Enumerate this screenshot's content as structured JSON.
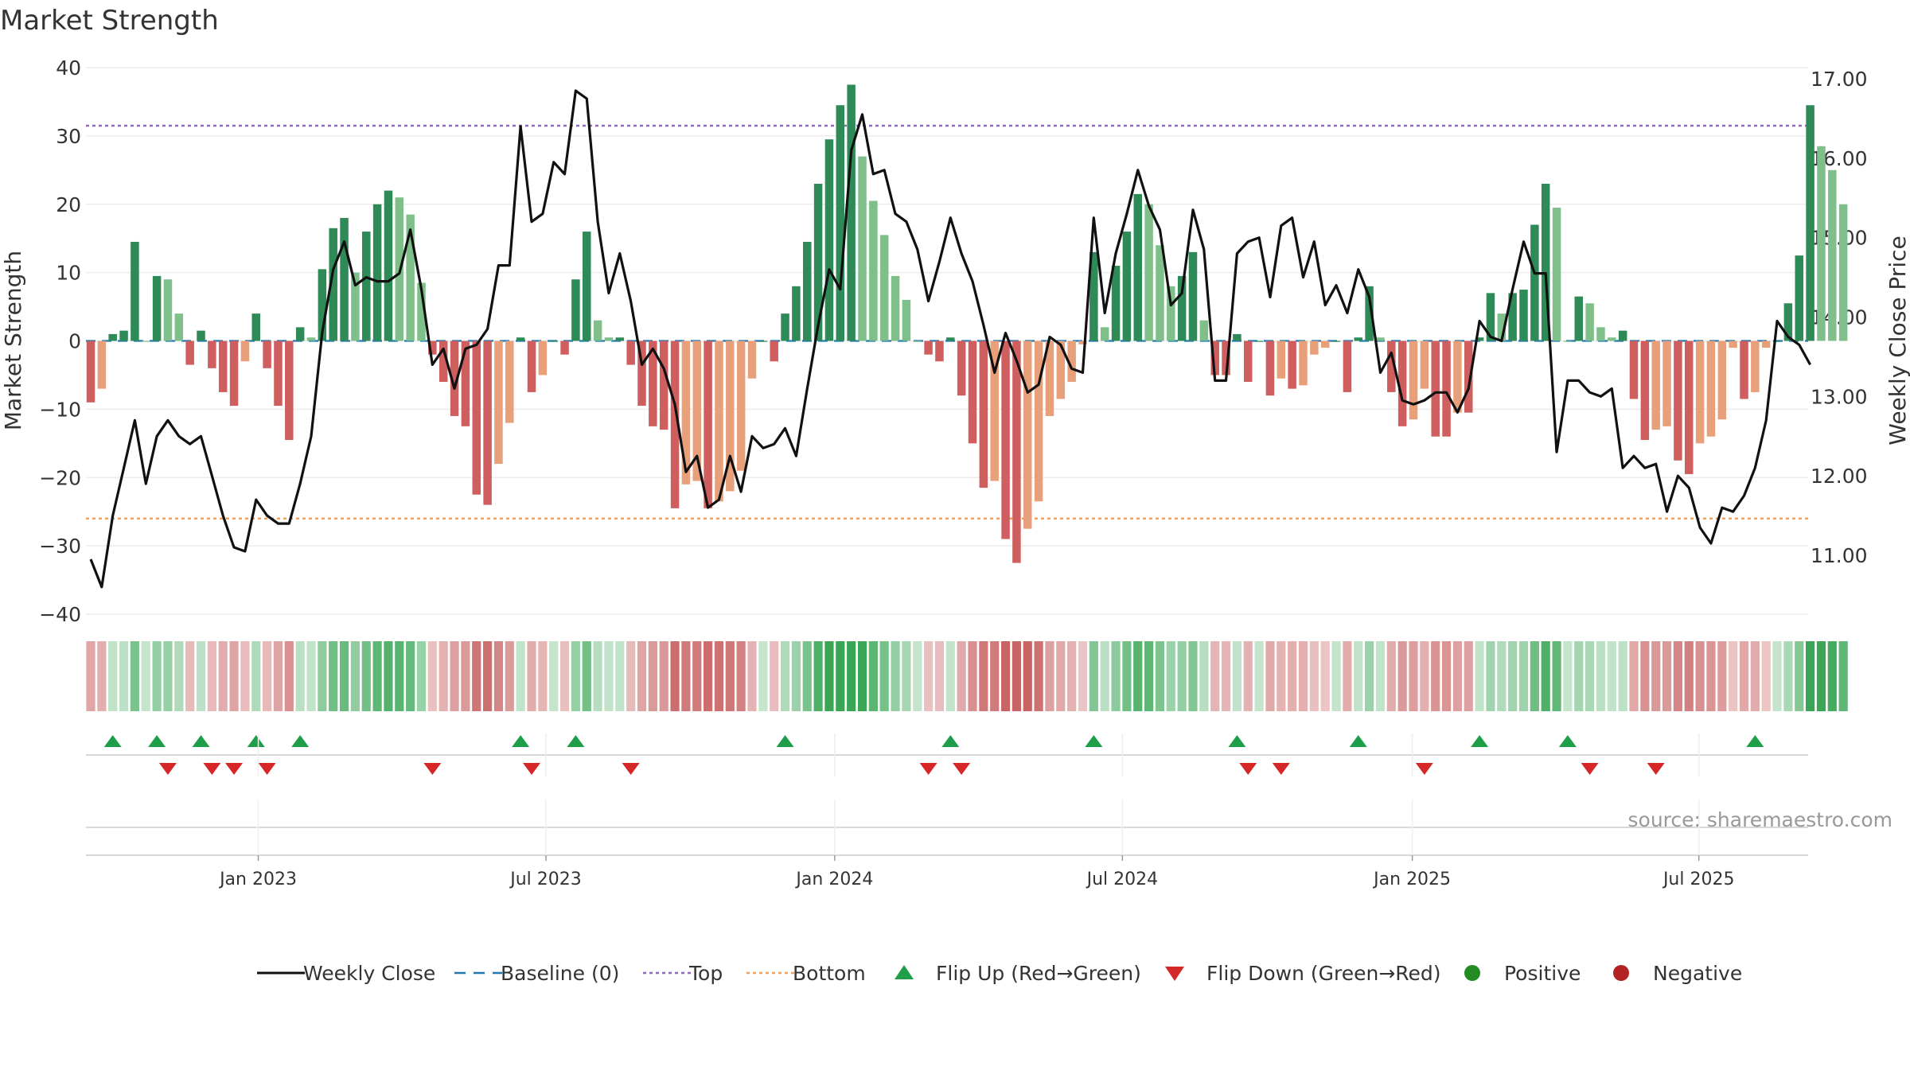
{
  "chart_data": {
    "type": "bar",
    "title": "Market Strength",
    "ylabel": "Market Strength",
    "y2label": "Weekly Close Price",
    "ylim": [
      -40,
      40
    ],
    "y2lim": [
      10.25,
      17.15
    ],
    "y_ticks": [
      40,
      30,
      20,
      10,
      0,
      -10,
      -20,
      -30,
      -40
    ],
    "y_tick_labels": [
      "40",
      "30",
      "20",
      "10",
      "0",
      "−10",
      "−20",
      "−30",
      "−40"
    ],
    "y2_ticks": [
      17.0,
      16.0,
      15.0,
      14.0,
      13.0,
      12.0,
      11.0
    ],
    "y2_tick_labels": [
      "17.00",
      "16.00",
      "15.00",
      "14.00",
      "13.00",
      "12.00",
      "11.00"
    ],
    "x_tick_labels": [
      "Jan 2023",
      "Jul 2023",
      "Jan 2024",
      "Jul 2024",
      "Jan 2025",
      "Jul 2025"
    ],
    "x_tick_weeks": [
      15.2,
      41.3,
      67.5,
      93.6,
      119.9,
      145.9
    ],
    "top_line": 31.5,
    "bottom_line": -26,
    "baseline": 0,
    "strength": [
      -9,
      -7,
      1,
      1.5,
      14.5,
      0,
      9.5,
      9,
      4,
      -3.5,
      1.5,
      -4,
      -7.5,
      -9.5,
      -3,
      4,
      -4,
      -9.5,
      -14.5,
      2,
      0.5,
      10.5,
      16.5,
      18,
      10,
      16,
      20,
      22,
      21,
      18.5,
      8.5,
      -2,
      -6,
      -11,
      -12.5,
      -22.5,
      -24,
      -18,
      -12,
      0.5,
      -7.5,
      -5,
      0,
      -2,
      9,
      16,
      3,
      0.5,
      0.5,
      -3.5,
      -9.5,
      -12.5,
      -13,
      -24.5,
      -21,
      -20.5,
      -24.5,
      -23.5,
      -22,
      -19,
      -5.5,
      0,
      -3,
      4,
      8,
      14.5,
      23,
      29.5,
      34.5,
      37.5,
      27,
      20.5,
      15.5,
      9.5,
      6,
      0,
      -2,
      -3,
      0.5,
      -8,
      -15,
      -21.5,
      -20.5,
      -29,
      -32.5,
      -27.5,
      -23.5,
      -11,
      -8.5,
      -6,
      -0.5,
      13,
      2,
      11,
      16,
      21.5,
      20,
      14,
      8,
      9.5,
      13,
      3,
      -5,
      -5,
      1,
      -6,
      0,
      -8,
      -5.5,
      -7,
      -6.5,
      -2,
      -1,
      0,
      -7.5,
      0.5,
      8,
      0.5,
      -7.5,
      -12.5,
      -11.5,
      -7,
      -14,
      -14,
      -10.5,
      -10.5,
      0.5,
      7,
      4,
      7,
      7.5,
      17,
      23,
      19.5,
      0,
      6.5,
      5.5,
      2,
      0.5,
      1.5,
      -8.5,
      -14.5,
      -13,
      -12.5,
      -17.5,
      -19.5,
      -15,
      -14,
      -11.5,
      -1,
      -8.5,
      -7.5,
      -1,
      0,
      5.5,
      12.5,
      34.5,
      28.5,
      25,
      20
    ],
    "weekly_close": [
      10.95,
      10.6,
      11.5,
      12.1,
      12.7,
      11.9,
      12.5,
      12.7,
      12.5,
      12.4,
      12.5,
      12.0,
      11.5,
      11.1,
      11.05,
      11.7,
      11.5,
      11.4,
      11.4,
      11.9,
      12.5,
      13.8,
      14.6,
      14.95,
      14.4,
      14.5,
      14.45,
      14.45,
      14.55,
      15.1,
      14.35,
      13.4,
      13.6,
      13.1,
      13.6,
      13.65,
      13.85,
      14.65,
      14.65,
      16.4,
      15.2,
      15.3,
      15.95,
      15.8,
      16.85,
      16.75,
      15.2,
      14.3,
      14.8,
      14.2,
      13.4,
      13.6,
      13.35,
      12.9,
      12.05,
      12.25,
      11.6,
      11.7,
      12.25,
      11.8,
      12.5,
      12.35,
      12.4,
      12.6,
      12.25,
      13.1,
      13.9,
      14.6,
      14.35,
      16.1,
      16.55,
      15.8,
      15.85,
      15.3,
      15.2,
      14.85,
      14.2,
      14.7,
      15.25,
      14.8,
      14.45,
      13.9,
      13.3,
      13.8,
      13.45,
      13.05,
      13.15,
      13.75,
      13.65,
      13.35,
      13.3,
      15.25,
      14.05,
      14.8,
      15.3,
      15.85,
      15.4,
      15.1,
      14.15,
      14.3,
      15.35,
      14.85,
      13.2,
      13.2,
      14.8,
      14.95,
      15.0,
      14.25,
      15.15,
      15.25,
      14.5,
      14.95,
      14.15,
      14.4,
      14.05,
      14.6,
      14.25,
      13.3,
      13.55,
      12.95,
      12.9,
      12.95,
      13.05,
      13.05,
      12.8,
      13.1,
      13.95,
      13.75,
      13.7,
      14.35,
      14.95,
      14.55,
      14.55,
      12.3,
      13.2,
      13.2,
      13.05,
      13.0,
      13.1,
      12.1,
      12.25,
      12.1,
      12.15,
      11.55,
      12.0,
      11.85,
      11.35,
      11.15,
      11.6,
      11.55,
      11.75,
      12.1,
      12.7,
      13.95,
      13.75,
      13.65,
      13.4
    ],
    "flip_up_weeks": [
      2,
      6,
      10,
      15,
      19,
      39,
      44,
      63,
      78,
      91,
      104,
      115,
      126,
      134,
      151
    ],
    "flip_down_weeks": [
      7,
      11,
      13,
      16,
      31,
      40,
      49,
      76,
      79,
      105,
      108,
      121,
      136,
      142
    ],
    "colors": {
      "pos_dark": "#2e8b57",
      "pos_light": "#7fc08a",
      "neg_dark": "#cf5f5f",
      "neg_light": "#e8a07a",
      "close_line": "#111111",
      "baseline": "#1f77b4",
      "top_line": "#9467bd",
      "bottom_line": "#f0a05a",
      "flip_up": "#1f9e4a",
      "flip_down": "#d62728",
      "positive": "#228b22",
      "negative": "#b22222"
    },
    "source_text": "source: sharemaestro.com",
    "legend": [
      {
        "label": "Weekly Close",
        "kind": "line"
      },
      {
        "label": "Baseline (0)",
        "kind": "dash"
      },
      {
        "label": "Top",
        "kind": "dot-purple"
      },
      {
        "label": "Bottom",
        "kind": "dot-orange"
      },
      {
        "label": "Flip Up (Red→Green)",
        "kind": "tri-up"
      },
      {
        "label": "Flip Down (Green→Red)",
        "kind": "tri-down"
      },
      {
        "label": "Positive",
        "kind": "dot-green"
      },
      {
        "label": "Negative",
        "kind": "dot-red"
      }
    ]
  }
}
